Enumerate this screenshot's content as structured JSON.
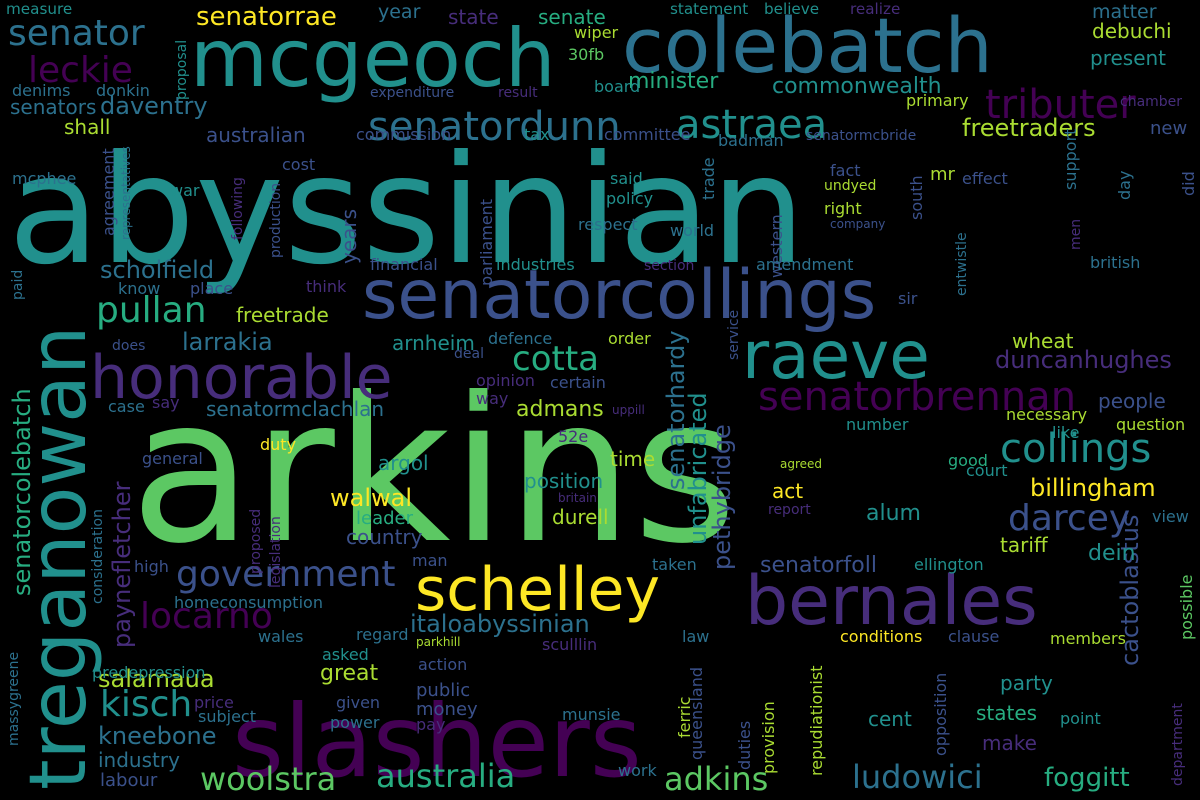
{
  "palette": {
    "background": "#000000",
    "colors": [
      "#440154",
      "#472d7b",
      "#3b518b",
      "#2c718e",
      "#21908d",
      "#27ad81",
      "#5cc863",
      "#aadc32",
      "#fde725"
    ]
  },
  "words": [
    {
      "text": "arkins",
      "color": "#5cc863"
    },
    {
      "text": "abyssinian",
      "color": "#21908d"
    },
    {
      "text": "slashers",
      "color": "#440154"
    },
    {
      "text": "mcgeoch",
      "color": "#21908d"
    },
    {
      "text": "colebatch",
      "color": "#2c718e"
    },
    {
      "text": "treganowan",
      "color": "#21908d"
    },
    {
      "text": "senatorcollings",
      "color": "#3b518b"
    },
    {
      "text": "bernales",
      "color": "#472d7b"
    },
    {
      "text": "schelley",
      "color": "#fde725"
    },
    {
      "text": "raeve",
      "color": "#21908d"
    },
    {
      "text": "honorable",
      "color": "#472d7b"
    },
    {
      "text": "senatordunn",
      "color": "#2c718e"
    },
    {
      "text": "astraea",
      "color": "#21908d"
    },
    {
      "text": "tributer",
      "color": "#440154"
    },
    {
      "text": "senatorbrennan",
      "color": "#440154"
    },
    {
      "text": "senator",
      "color": "#2c718e"
    },
    {
      "text": "leckie",
      "color": "#440154"
    },
    {
      "text": "senatorrae",
      "color": "#fde725"
    },
    {
      "text": "cotta",
      "color": "#27ad81"
    },
    {
      "text": "collings",
      "color": "#21908d"
    },
    {
      "text": "pullan",
      "color": "#27ad81"
    },
    {
      "text": "darcey",
      "color": "#3b518b"
    },
    {
      "text": "government",
      "color": "#3b518b"
    },
    {
      "text": "locarno",
      "color": "#440154"
    },
    {
      "text": "kisch",
      "color": "#21908d"
    },
    {
      "text": "woolstra",
      "color": "#5cc863"
    },
    {
      "text": "australia",
      "color": "#27ad81"
    },
    {
      "text": "adkins",
      "color": "#5cc863"
    },
    {
      "text": "ludowici",
      "color": "#2c718e"
    },
    {
      "text": "foggitt",
      "color": "#27ad81"
    },
    {
      "text": "senatorcolebatch",
      "color": "#27ad81"
    },
    {
      "text": "paynefletcher",
      "color": "#472d7b"
    },
    {
      "text": "unfabricated",
      "color": "#21908d"
    },
    {
      "text": "senatorhardy",
      "color": "#2c718e"
    },
    {
      "text": "pethybridge",
      "color": "#3b518b"
    },
    {
      "text": "billingham",
      "color": "#fde725"
    },
    {
      "text": "duncanhughes",
      "color": "#472d7b"
    },
    {
      "text": "freetraders",
      "color": "#aadc32"
    },
    {
      "text": "scholfield",
      "color": "#2c718e"
    },
    {
      "text": "larrakia",
      "color": "#2c718e"
    },
    {
      "text": "daventry",
      "color": "#2c718e"
    },
    {
      "text": "walwal",
      "color": "#fde725"
    },
    {
      "text": "italoabyssinian",
      "color": "#2c718e"
    },
    {
      "text": "salamaua",
      "color": "#aadc32"
    },
    {
      "text": "kneebone",
      "color": "#2c718e"
    },
    {
      "text": "cactoblastus",
      "color": "#3b518b"
    },
    {
      "text": "senatorfoll",
      "color": "#3b518b"
    },
    {
      "text": "senatormclachlan",
      "color": "#2c718e"
    },
    {
      "text": "minister",
      "color": "#27ad81"
    },
    {
      "text": "commonwealth",
      "color": "#21908d"
    },
    {
      "text": "senators",
      "color": "#2c718e"
    },
    {
      "text": "australian",
      "color": "#3b518b"
    },
    {
      "text": "freetrade",
      "color": "#aadc32"
    },
    {
      "text": "arnheim",
      "color": "#21908d"
    },
    {
      "text": "admans",
      "color": "#aadc32"
    },
    {
      "text": "argol",
      "color": "#21908d"
    },
    {
      "text": "position",
      "color": "#21908d"
    },
    {
      "text": "durell",
      "color": "#aadc32"
    },
    {
      "text": "alum",
      "color": "#21908d"
    },
    {
      "text": "dein",
      "color": "#21908d"
    },
    {
      "text": "tariff",
      "color": "#aadc32"
    },
    {
      "text": "people",
      "color": "#3b518b"
    },
    {
      "text": "wheat",
      "color": "#aadc32"
    },
    {
      "text": "debuchi",
      "color": "#aadc32"
    },
    {
      "text": "present",
      "color": "#21908d"
    },
    {
      "text": "matter",
      "color": "#2c718e"
    },
    {
      "text": "state",
      "color": "#472d7b"
    },
    {
      "text": "senate",
      "color": "#27ad81"
    },
    {
      "text": "year",
      "color": "#2c718e"
    },
    {
      "text": "shall",
      "color": "#aadc32"
    },
    {
      "text": "new",
      "color": "#3b518b"
    },
    {
      "text": "country",
      "color": "#3b518b"
    },
    {
      "text": "leader",
      "color": "#27ad81"
    },
    {
      "text": "time",
      "color": "#aadc32"
    },
    {
      "text": "act",
      "color": "#fde725"
    },
    {
      "text": "great",
      "color": "#aadc32"
    },
    {
      "text": "public",
      "color": "#3b518b"
    },
    {
      "text": "money",
      "color": "#3b518b"
    },
    {
      "text": "cent",
      "color": "#21908d"
    },
    {
      "text": "party",
      "color": "#21908d"
    },
    {
      "text": "states",
      "color": "#27ad81"
    },
    {
      "text": "make",
      "color": "#472d7b"
    },
    {
      "text": "industry",
      "color": "#2c718e"
    },
    {
      "text": "labour",
      "color": "#3b518b"
    },
    {
      "text": "mcphee",
      "color": "#2c718e"
    },
    {
      "text": "measure",
      "color": "#21908d"
    },
    {
      "text": "statement",
      "color": "#21908d"
    },
    {
      "text": "believe",
      "color": "#21908d"
    },
    {
      "text": "realize",
      "color": "#472d7b"
    },
    {
      "text": "wiper",
      "color": "#aadc32"
    },
    {
      "text": "30fb",
      "color": "#5cc863"
    },
    {
      "text": "board",
      "color": "#21908d"
    },
    {
      "text": "proposal",
      "color": "#21908d"
    },
    {
      "text": "denims",
      "color": "#2c718e"
    },
    {
      "text": "donkin",
      "color": "#2c718e"
    },
    {
      "text": "expenditure",
      "color": "#3b518b"
    },
    {
      "text": "result",
      "color": "#472d7b"
    },
    {
      "text": "primary",
      "color": "#aadc32"
    },
    {
      "text": "chamber",
      "color": "#472d7b"
    },
    {
      "text": "commission",
      "color": "#3b518b"
    },
    {
      "text": "tax",
      "color": "#21908d"
    },
    {
      "text": "committee",
      "color": "#3b518b"
    },
    {
      "text": "badman",
      "color": "#2c718e"
    },
    {
      "text": "senatormcbride",
      "color": "#3b518b"
    },
    {
      "text": "representatives",
      "color": "#2c718e"
    },
    {
      "text": "agreement",
      "color": "#3b518b"
    },
    {
      "text": "cost",
      "color": "#3b518b"
    },
    {
      "text": "war",
      "color": "#21908d"
    },
    {
      "text": "parliament",
      "color": "#3b518b"
    },
    {
      "text": "said",
      "color": "#21908d"
    },
    {
      "text": "policy",
      "color": "#21908d"
    },
    {
      "text": "respect",
      "color": "#2c718e"
    },
    {
      "text": "trade",
      "color": "#2c718e"
    },
    {
      "text": "south",
      "color": "#3b518b"
    },
    {
      "text": "mr",
      "color": "#aadc32"
    },
    {
      "text": "fact",
      "color": "#3b518b"
    },
    {
      "text": "undyed",
      "color": "#aadc32"
    },
    {
      "text": "right",
      "color": "#aadc32"
    },
    {
      "text": "company",
      "color": "#3b518b"
    },
    {
      "text": "effect",
      "color": "#3b518b"
    },
    {
      "text": "support",
      "color": "#2c718e"
    },
    {
      "text": "day",
      "color": "#2c718e"
    },
    {
      "text": "did",
      "color": "#3b518b"
    },
    {
      "text": "men",
      "color": "#472d7b"
    },
    {
      "text": "entwistle",
      "color": "#2c718e"
    },
    {
      "text": "world",
      "color": "#2c718e"
    },
    {
      "text": "western",
      "color": "#3b518b"
    },
    {
      "text": "production",
      "color": "#3b518b"
    },
    {
      "text": "following",
      "color": "#472d7b"
    },
    {
      "text": "years",
      "color": "#3b518b"
    },
    {
      "text": "financial",
      "color": "#3b518b"
    },
    {
      "text": "industries",
      "color": "#21908d"
    },
    {
      "text": "section",
      "color": "#472d7b"
    },
    {
      "text": "amendment",
      "color": "#2c718e"
    },
    {
      "text": "british",
      "color": "#2c718e"
    },
    {
      "text": "paid",
      "color": "#2c718e"
    },
    {
      "text": "know",
      "color": "#2c718e"
    },
    {
      "text": "place",
      "color": "#3b518b"
    },
    {
      "text": "think",
      "color": "#472d7b"
    },
    {
      "text": "sir",
      "color": "#3b518b"
    },
    {
      "text": "service",
      "color": "#3b518b"
    },
    {
      "text": "does",
      "color": "#3b518b"
    },
    {
      "text": "defence",
      "color": "#2c718e"
    },
    {
      "text": "order",
      "color": "#aadc32"
    },
    {
      "text": "deal",
      "color": "#3b518b"
    },
    {
      "text": "opinion",
      "color": "#472d7b"
    },
    {
      "text": "way",
      "color": "#472d7b"
    },
    {
      "text": "certain",
      "color": "#3b518b"
    },
    {
      "text": "case",
      "color": "#2c718e"
    },
    {
      "text": "say",
      "color": "#472d7b"
    },
    {
      "text": "uppill",
      "color": "#472d7b"
    },
    {
      "text": "necessary",
      "color": "#aadc32"
    },
    {
      "text": "like",
      "color": "#21908d"
    },
    {
      "text": "question",
      "color": "#aadc32"
    },
    {
      "text": "duty",
      "color": "#fde725"
    },
    {
      "text": "general",
      "color": "#3b518b"
    },
    {
      "text": "52e",
      "color": "#472d7b"
    },
    {
      "text": "number",
      "color": "#21908d"
    },
    {
      "text": "good",
      "color": "#27ad81"
    },
    {
      "text": "court",
      "color": "#21908d"
    },
    {
      "text": "agreed",
      "color": "#aadc32"
    },
    {
      "text": "britain",
      "color": "#472d7b"
    },
    {
      "text": "report",
      "color": "#472d7b"
    },
    {
      "text": "view",
      "color": "#2c718e"
    },
    {
      "text": "consideration",
      "color": "#2c718e"
    },
    {
      "text": "proposed",
      "color": "#472d7b"
    },
    {
      "text": "legislation",
      "color": "#472d7b"
    },
    {
      "text": "high",
      "color": "#3b518b"
    },
    {
      "text": "man",
      "color": "#3b518b"
    },
    {
      "text": "homeconsumption",
      "color": "#2c718e"
    },
    {
      "text": "taken",
      "color": "#2c718e"
    },
    {
      "text": "ellington",
      "color": "#21908d"
    },
    {
      "text": "possible",
      "color": "#5cc863"
    },
    {
      "text": "massygreene",
      "color": "#2c718e"
    },
    {
      "text": "wales",
      "color": "#2c718e"
    },
    {
      "text": "regard",
      "color": "#2c718e"
    },
    {
      "text": "asked",
      "color": "#21908d"
    },
    {
      "text": "parkhill",
      "color": "#aadc32"
    },
    {
      "text": "sculllin",
      "color": "#472d7b"
    },
    {
      "text": "law",
      "color": "#2c718e"
    },
    {
      "text": "conditions",
      "color": "#fde725"
    },
    {
      "text": "clause",
      "color": "#3b518b"
    },
    {
      "text": "members",
      "color": "#aadc32"
    },
    {
      "text": "predepression",
      "color": "#21908d"
    },
    {
      "text": "action",
      "color": "#3b518b"
    },
    {
      "text": "price",
      "color": "#472d7b"
    },
    {
      "text": "subject",
      "color": "#2c718e"
    },
    {
      "text": "given",
      "color": "#3b518b"
    },
    {
      "text": "power",
      "color": "#2c718e"
    },
    {
      "text": "pay",
      "color": "#472d7b"
    },
    {
      "text": "munsie",
      "color": "#2c718e"
    },
    {
      "text": "ferric",
      "color": "#aadc32"
    },
    {
      "text": "queensland",
      "color": "#3b518b"
    },
    {
      "text": "duties",
      "color": "#3b518b"
    },
    {
      "text": "provision",
      "color": "#aadc32"
    },
    {
      "text": "repudiationist",
      "color": "#aadc32"
    },
    {
      "text": "opposition",
      "color": "#3b518b"
    },
    {
      "text": "point",
      "color": "#21908d"
    },
    {
      "text": "department",
      "color": "#472d7b"
    },
    {
      "text": "work",
      "color": "#2c718e"
    }
  ]
}
